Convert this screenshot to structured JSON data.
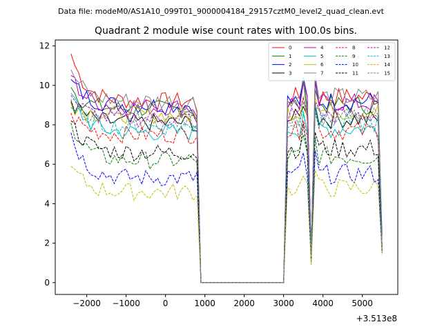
{
  "chart_data": {
    "type": "line",
    "suptitle": "Data file: modeM0/AS1A10_099T01_9000004184_29157cztM0_level2_quad_clean.evt",
    "title": "Quadrant 2 module wise count rates with 100.0s bins.",
    "xlabel": "",
    "ylabel": "",
    "x_offset_label": "+3.513e8",
    "xlim": [
      -2800,
      5900
    ],
    "ylim": [
      -0.6,
      12.3
    ],
    "xticks": [
      -2000,
      -1000,
      0,
      1000,
      2000,
      3000,
      4000,
      5000
    ],
    "xtick_labels": [
      "−2000",
      "−1000",
      "0",
      "1000",
      "2000",
      "3000",
      "4000",
      "5000"
    ],
    "yticks": [
      0,
      2,
      4,
      6,
      8,
      10,
      12
    ],
    "ytick_labels": [
      "0",
      "2",
      "4",
      "6",
      "8",
      "10",
      "12"
    ],
    "legend_position": "top-right",
    "legend_columns": 4,
    "segments": [
      {
        "name": "seg1",
        "x_start": -2400,
        "x_end": 800
      },
      {
        "name": "gap",
        "x_start": 900,
        "x_end": 3000
      },
      {
        "name": "seg2",
        "x_start": 3100,
        "x_end": 5500
      }
    ],
    "series": [
      {
        "name": "0",
        "color": "#ff0000",
        "dash": "solid",
        "level": 9.2,
        "start": 11.6,
        "seg1_end": 8.7,
        "seg2_dip": 1.6,
        "seg2_end": 1.9
      },
      {
        "name": "1",
        "color": "#008000",
        "dash": "solid",
        "level": 8.8,
        "start": 9.9,
        "seg1_end": 8.1,
        "seg2_dip": 1.4,
        "seg2_end": 1.8
      },
      {
        "name": "2",
        "color": "#0000ff",
        "dash": "solid",
        "level": 9.0,
        "start": 10.3,
        "seg1_end": 8.3,
        "seg2_dip": 1.5,
        "seg2_end": 2.4
      },
      {
        "name": "3",
        "color": "#000000",
        "dash": "solid",
        "level": 8.1,
        "start": 9.2,
        "seg1_end": 7.7,
        "seg2_dip": 1.4,
        "seg2_end": 1.7
      },
      {
        "name": "4",
        "color": "#bf00bf",
        "dash": "solid",
        "level": 8.9,
        "start": 10.5,
        "seg1_end": 8.4,
        "seg2_dip": 1.5,
        "seg2_end": 1.8
      },
      {
        "name": "5",
        "color": "#00bfbf",
        "dash": "solid",
        "level": 7.6,
        "start": 9.6,
        "seg1_end": 7.8,
        "seg2_dip": 1.3,
        "seg2_end": 1.6
      },
      {
        "name": "6",
        "color": "#bfbf00",
        "dash": "solid",
        "level": 8.5,
        "start": 9.1,
        "seg1_end": 8.2,
        "seg2_dip": 1.4,
        "seg2_end": 1.7
      },
      {
        "name": "7",
        "color": "#808080",
        "dash": "solid",
        "level": 9.2,
        "start": 10.8,
        "seg1_end": 8.6,
        "seg2_dip": 1.5,
        "seg2_end": 1.9
      },
      {
        "name": "8",
        "color": "#ff0000",
        "dash": "dashed",
        "level": 7.5,
        "start": 8.6,
        "seg1_end": 7.4,
        "seg2_dip": 1.3,
        "seg2_end": 1.6
      },
      {
        "name": "9",
        "color": "#008000",
        "dash": "dashed",
        "level": 6.2,
        "start": 8.1,
        "seg1_end": 6.1,
        "seg2_dip": 1.1,
        "seg2_end": 1.5
      },
      {
        "name": "10",
        "color": "#0000ff",
        "dash": "dashed",
        "level": 5.3,
        "start": 7.6,
        "seg1_end": 5.6,
        "seg2_dip": 1.0,
        "seg2_end": 1.5
      },
      {
        "name": "11",
        "color": "#000000",
        "dash": "dashed",
        "level": 6.6,
        "start": 8.2,
        "seg1_end": 6.3,
        "seg2_dip": 1.2,
        "seg2_end": 1.6
      },
      {
        "name": "12",
        "color": "#bf00bf",
        "dash": "dashed",
        "level": 8.3,
        "start": 9.5,
        "seg1_end": 8.1,
        "seg2_dip": 1.4,
        "seg2_end": 1.7
      },
      {
        "name": "13",
        "color": "#00bfbf",
        "dash": "dashed",
        "level": 7.9,
        "start": 8.9,
        "seg1_end": 8.0,
        "seg2_dip": 1.3,
        "seg2_end": 1.7
      },
      {
        "name": "14",
        "color": "#bfbf00",
        "dash": "dashed",
        "level": 4.6,
        "start": 5.9,
        "seg1_end": 4.4,
        "seg2_dip": 0.9,
        "seg2_end": 1.4
      },
      {
        "name": "15",
        "color": "#808080",
        "dash": "dashed",
        "level": 8.2,
        "start": 9.3,
        "seg1_end": 8.0,
        "seg2_dip": 1.4,
        "seg2_end": 1.8
      }
    ]
  }
}
